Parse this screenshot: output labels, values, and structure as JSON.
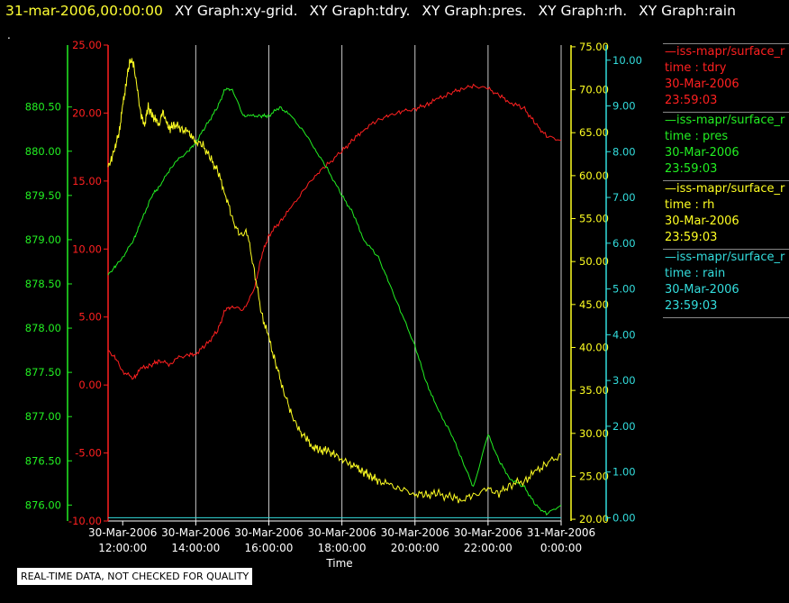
{
  "header": {
    "datetime": "31-mar-2006,00:00:00",
    "graphs": [
      "XY Graph:xy-grid.",
      "XY Graph:tdry.",
      "XY Graph:pres.",
      "XY Graph:rh.",
      "XY Graph:rain"
    ]
  },
  "dot": ".",
  "notice": "REAL-TIME DATA, NOT CHECKED FOR QUALITY",
  "colors": {
    "tdry": "#ff2020",
    "pres": "#22ee22",
    "rh": "#ffff22",
    "rain": "#33dddd",
    "grid": "#c8c8c8"
  },
  "legend": [
    {
      "name": "—iss-mapr/surface_r",
      "line2": "time : tdry",
      "line3": "30-Mar-2006",
      "line4": "23:59:03",
      "color": "#ff2020"
    },
    {
      "name": "—iss-mapr/surface_r",
      "line2": "time : pres",
      "line3": "30-Mar-2006",
      "line4": "23:59:03",
      "color": "#22ee22"
    },
    {
      "name": "—iss-mapr/surface_r",
      "line2": "time : rh",
      "line3": "30-Mar-2006",
      "line4": "23:59:03",
      "color": "#ffff22"
    },
    {
      "name": "—iss-mapr/surface_r",
      "line2": "time : rain",
      "line3": "30-Mar-2006",
      "line4": "23:59:03",
      "color": "#33dddd"
    }
  ],
  "chart_data": {
    "type": "line",
    "xlabel": "Time",
    "x_ticks": [
      {
        "date": "30-Mar-2006",
        "time": "12:00:00",
        "t": 12
      },
      {
        "date": "30-Mar-2006",
        "time": "14:00:00",
        "t": 14
      },
      {
        "date": "30-Mar-2006",
        "time": "16:00:00",
        "t": 16
      },
      {
        "date": "30-Mar-2006",
        "time": "18:00:00",
        "t": 18
      },
      {
        "date": "30-Mar-2006",
        "time": "20:00:00",
        "t": 20
      },
      {
        "date": "30-Mar-2006",
        "time": "22:00:00",
        "t": 22
      },
      {
        "date": "31-Mar-2006",
        "time": "0:00:00",
        "t": 24
      }
    ],
    "xlim": [
      11.6,
      24
    ],
    "grid": "vertical",
    "axes": {
      "pres": {
        "ylim": [
          875.82,
          881.2
        ],
        "ticks": [
          "876.00",
          "876.50",
          "877.00",
          "877.50",
          "878.00",
          "878.50",
          "879.00",
          "879.50",
          "880.00",
          "880.50"
        ]
      },
      "tdry": {
        "ylim": [
          -10,
          25
        ],
        "ticks": [
          "-10.00",
          "-5.00",
          "0.00",
          "5.00",
          "10.00",
          "15.00",
          "20.00",
          "25.00"
        ]
      },
      "rh": {
        "ylim": [
          19.8,
          75.2
        ],
        "ticks": [
          "20.00",
          "25.00",
          "30.00",
          "35.00",
          "40.00",
          "45.00",
          "50.00",
          "55.00",
          "60.00",
          "65.00",
          "70.00",
          "75.00"
        ]
      },
      "rain": {
        "ylim": [
          -0.07,
          10.33
        ],
        "ticks": [
          "0.00",
          "1.00",
          "2.00",
          "3.00",
          "4.00",
          "5.00",
          "6.00",
          "7.00",
          "8.00",
          "9.00",
          "10.00"
        ]
      }
    },
    "series": [
      {
        "key": "tdry",
        "x": [
          11.6,
          11.8,
          12.0,
          12.3,
          12.5,
          12.8,
          13.0,
          13.3,
          13.5,
          13.8,
          14.0,
          14.3,
          14.6,
          14.8,
          15.0,
          15.3,
          15.6,
          15.8,
          16.0,
          16.3,
          16.6,
          17.0,
          17.3,
          17.6,
          18.0,
          18.3,
          18.6,
          19.0,
          19.3,
          19.6,
          20.0,
          20.3,
          20.6,
          21.0,
          21.3,
          21.6,
          22.0,
          22.3,
          22.6,
          23.0,
          23.3,
          23.6,
          24.0
        ],
        "values": [
          2.5,
          2.0,
          1.0,
          0.5,
          1.2,
          1.5,
          1.8,
          1.5,
          2.0,
          2.2,
          2.3,
          3.0,
          4.0,
          5.5,
          5.8,
          5.5,
          7.0,
          9.5,
          11.0,
          12.0,
          13.0,
          14.5,
          15.5,
          16.2,
          17.2,
          18.0,
          18.8,
          19.5,
          19.8,
          20.1,
          20.3,
          20.6,
          21.0,
          21.5,
          21.8,
          22.0,
          21.8,
          21.3,
          20.8,
          20.3,
          19.2,
          18.3,
          18.0
        ]
      },
      {
        "key": "pres",
        "x": [
          11.6,
          11.8,
          12.0,
          12.3,
          12.5,
          12.8,
          13.0,
          13.3,
          13.5,
          13.8,
          14.0,
          14.3,
          14.6,
          14.8,
          15.0,
          15.3,
          15.5,
          15.8,
          16.0,
          16.3,
          16.6,
          17.0,
          17.3,
          17.6,
          18.0,
          18.3,
          18.6,
          19.0,
          19.3,
          19.6,
          20.0,
          20.3,
          20.6,
          21.0,
          21.3,
          21.6,
          22.0,
          22.3,
          22.6,
          23.0,
          23.3,
          23.6,
          24.0
        ],
        "values": [
          878.6,
          878.7,
          878.8,
          879.0,
          879.2,
          879.5,
          879.6,
          879.8,
          879.9,
          880.0,
          880.1,
          880.3,
          880.5,
          880.7,
          880.7,
          880.4,
          880.4,
          880.4,
          880.4,
          880.5,
          880.4,
          880.2,
          880.0,
          879.8,
          879.5,
          879.3,
          879.0,
          878.8,
          878.5,
          878.2,
          877.8,
          877.4,
          877.1,
          876.8,
          876.5,
          876.2,
          876.8,
          876.5,
          876.3,
          876.2,
          876.0,
          875.9,
          876.0
        ]
      },
      {
        "key": "rh",
        "x": [
          11.6,
          11.7,
          11.8,
          11.9,
          12.0,
          12.1,
          12.2,
          12.3,
          12.4,
          12.5,
          12.6,
          12.7,
          12.8,
          12.9,
          13.0,
          13.1,
          13.2,
          13.3,
          13.4,
          13.6,
          13.8,
          13.9,
          14.0,
          14.2,
          14.4,
          14.6,
          14.8,
          15.0,
          15.2,
          15.4,
          15.6,
          15.8,
          16.0,
          16.2,
          16.4,
          16.6,
          16.8,
          17.0,
          17.2,
          17.4,
          17.6,
          17.8,
          18.0,
          18.2,
          18.4,
          18.6,
          18.8,
          19.0,
          19.3,
          19.6,
          20.0,
          20.3,
          20.6,
          21.0,
          21.3,
          21.6,
          22.0,
          22.3,
          22.6,
          23.0,
          23.3,
          23.6,
          24.0
        ],
        "values": [
          61.0,
          62.0,
          63.5,
          65.0,
          68.0,
          71.0,
          73.5,
          73.0,
          70.0,
          67.0,
          66.0,
          68.0,
          67.0,
          66.5,
          66.0,
          67.5,
          66.0,
          65.5,
          66.0,
          65.5,
          65.0,
          64.5,
          64.0,
          63.5,
          62.0,
          60.5,
          58.0,
          55.0,
          53.0,
          53.5,
          49.0,
          44.0,
          41.0,
          38.0,
          35.0,
          32.5,
          30.5,
          29.5,
          28.5,
          28.0,
          28.0,
          27.5,
          27.0,
          26.5,
          26.0,
          25.5,
          25.0,
          24.5,
          24.0,
          23.5,
          23.0,
          22.8,
          23.0,
          22.5,
          22.3,
          22.8,
          23.5,
          23.0,
          24.0,
          24.5,
          25.5,
          26.5,
          27.5
        ]
      },
      {
        "key": "rain",
        "x": [
          11.6,
          24.0
        ],
        "values": [
          0.0,
          0.0
        ]
      }
    ]
  }
}
